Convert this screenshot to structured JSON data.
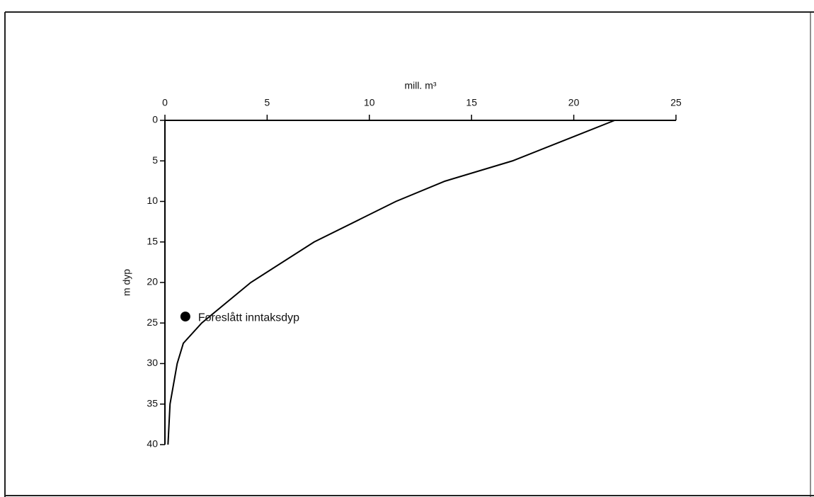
{
  "chart_data": {
    "type": "line",
    "xlabel": "mill. m³",
    "ylabel": "m dyp",
    "xlim": [
      0,
      25
    ],
    "xticks": [
      0,
      5,
      10,
      15,
      20,
      25
    ],
    "xaxis_position": "top",
    "ylim": [
      0,
      40
    ],
    "yticks": [
      0,
      5,
      10,
      15,
      20,
      25,
      30,
      35,
      40
    ],
    "y_inverted": true,
    "series": [
      {
        "color": "#000000",
        "x": [
          22,
          20,
          17,
          13.7,
          11.3,
          7.3,
          4.2,
          1.8,
          0.9,
          0.6,
          0.25,
          0.15
        ],
        "values": [
          0,
          2,
          5,
          7.5,
          10,
          15,
          20,
          25,
          27.5,
          30,
          35,
          40
        ]
      }
    ],
    "marker": {
      "x": 1,
      "y": 24.2,
      "label": "Foreslått inntaksdyp"
    }
  }
}
